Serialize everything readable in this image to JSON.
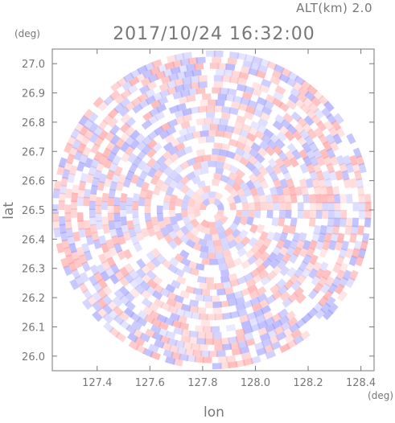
{
  "header": {
    "altitude": "ALT(km)  2.0",
    "timestamp": "2017/10/24  16:32:00",
    "y_unit": "(deg)",
    "x_unit": "(deg)"
  },
  "chart_data": {
    "type": "heatmap",
    "title": "2017/10/24  16:32:00",
    "subtitle": "ALT(km)  2.0",
    "xlabel": "lon",
    "ylabel": "lat",
    "x_unit": "(deg)",
    "y_unit": "(deg)",
    "xlim": [
      127.23,
      128.45
    ],
    "ylim": [
      25.95,
      27.05
    ],
    "x_ticks": [
      127.4,
      127.6,
      127.8,
      128.0,
      128.2,
      128.4
    ],
    "x_tick_labels": [
      "127.4",
      "127.6",
      "127.8",
      "128.0",
      "128.2",
      "128.4"
    ],
    "y_ticks": [
      26.0,
      26.1,
      26.2,
      26.3,
      26.4,
      26.5,
      26.6,
      26.7,
      26.8,
      26.9,
      27.0
    ],
    "y_tick_labels": [
      "26.0",
      "26.1",
      "26.2",
      "26.3",
      "26.4",
      "26.5",
      "26.6",
      "26.7",
      "26.8",
      "26.9",
      "27.0"
    ],
    "domain": {
      "center_lon": 127.835,
      "center_lat": 26.5,
      "radius_lat_deg": 0.545
    },
    "colors": {
      "positive": "#ff9999",
      "negative": "#9999ff",
      "neutral": "#ffffff"
    },
    "grid": false,
    "legend": "none"
  }
}
